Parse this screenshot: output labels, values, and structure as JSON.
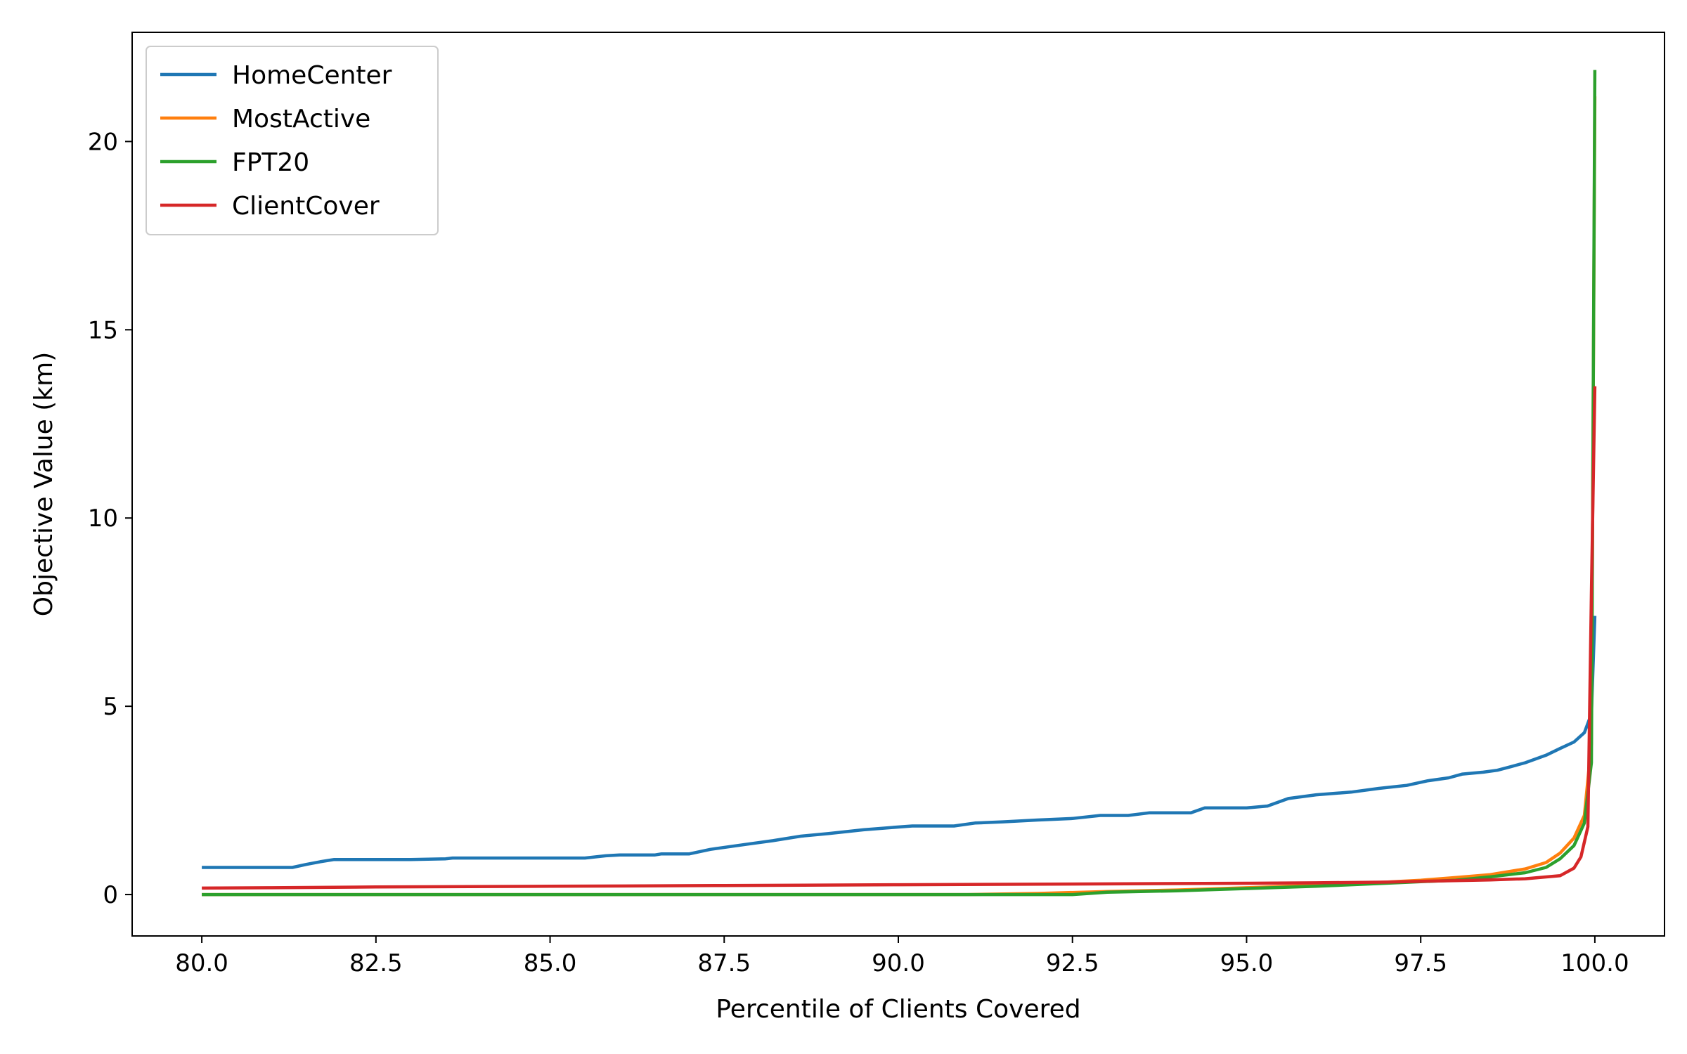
{
  "chart_data": {
    "type": "line",
    "title": "",
    "xlabel": "Percentile of Clients Covered",
    "ylabel": "Objective Value (km)",
    "xlim": [
      79.0,
      101.0
    ],
    "ylim": [
      -1.1,
      22.9
    ],
    "xticks": [
      80.0,
      82.5,
      85.0,
      87.5,
      90.0,
      92.5,
      95.0,
      97.5,
      100.0
    ],
    "xtick_labels": [
      "80.0",
      "82.5",
      "85.0",
      "87.5",
      "90.0",
      "92.5",
      "95.0",
      "97.5",
      "100.0"
    ],
    "yticks": [
      0,
      5,
      10,
      15,
      20
    ],
    "ytick_labels": [
      "0",
      "5",
      "10",
      "15",
      "20"
    ],
    "grid": false,
    "legend_position": "top-left",
    "series": [
      {
        "name": "HomeCenter",
        "color": "#1f77b4",
        "points": [
          [
            80.0,
            0.72
          ],
          [
            81.3,
            0.72
          ],
          [
            81.5,
            0.8
          ],
          [
            81.7,
            0.87
          ],
          [
            81.9,
            0.93
          ],
          [
            82.5,
            0.93
          ],
          [
            83.0,
            0.93
          ],
          [
            83.5,
            0.95
          ],
          [
            83.6,
            0.97
          ],
          [
            84.5,
            0.97
          ],
          [
            85.5,
            0.97
          ],
          [
            85.8,
            1.03
          ],
          [
            86.0,
            1.05
          ],
          [
            86.5,
            1.05
          ],
          [
            86.6,
            1.08
          ],
          [
            87.0,
            1.08
          ],
          [
            87.3,
            1.2
          ],
          [
            87.8,
            1.33
          ],
          [
            88.2,
            1.43
          ],
          [
            88.6,
            1.55
          ],
          [
            89.0,
            1.62
          ],
          [
            89.5,
            1.72
          ],
          [
            89.9,
            1.78
          ],
          [
            90.2,
            1.82
          ],
          [
            90.8,
            1.82
          ],
          [
            91.1,
            1.9
          ],
          [
            91.5,
            1.93
          ],
          [
            92.0,
            1.98
          ],
          [
            92.5,
            2.02
          ],
          [
            92.9,
            2.1
          ],
          [
            93.3,
            2.1
          ],
          [
            93.6,
            2.17
          ],
          [
            94.2,
            2.17
          ],
          [
            94.4,
            2.3
          ],
          [
            95.0,
            2.3
          ],
          [
            95.3,
            2.35
          ],
          [
            95.6,
            2.55
          ],
          [
            96.0,
            2.65
          ],
          [
            96.5,
            2.72
          ],
          [
            96.9,
            2.82
          ],
          [
            97.3,
            2.9
          ],
          [
            97.6,
            3.02
          ],
          [
            97.9,
            3.1
          ],
          [
            98.1,
            3.2
          ],
          [
            98.4,
            3.25
          ],
          [
            98.6,
            3.3
          ],
          [
            98.8,
            3.4
          ],
          [
            99.0,
            3.5
          ],
          [
            99.3,
            3.7
          ],
          [
            99.5,
            3.88
          ],
          [
            99.7,
            4.05
          ],
          [
            99.85,
            4.3
          ],
          [
            99.95,
            4.8
          ],
          [
            100.0,
            7.4
          ]
        ]
      },
      {
        "name": "MostActive",
        "color": "#ff7f0e",
        "points": [
          [
            80.0,
            0.0
          ],
          [
            91.0,
            0.0
          ],
          [
            92.0,
            0.03
          ],
          [
            93.0,
            0.08
          ],
          [
            94.0,
            0.12
          ],
          [
            95.0,
            0.18
          ],
          [
            96.0,
            0.25
          ],
          [
            97.0,
            0.33
          ],
          [
            97.5,
            0.38
          ],
          [
            98.0,
            0.45
          ],
          [
            98.5,
            0.53
          ],
          [
            99.0,
            0.68
          ],
          [
            99.3,
            0.85
          ],
          [
            99.5,
            1.1
          ],
          [
            99.7,
            1.5
          ],
          [
            99.85,
            2.1
          ],
          [
            99.95,
            4.0
          ],
          [
            100.0,
            21.2
          ]
        ]
      },
      {
        "name": "FPT20",
        "color": "#2ca02c",
        "points": [
          [
            80.0,
            0.0
          ],
          [
            92.5,
            0.0
          ],
          [
            93.0,
            0.06
          ],
          [
            94.0,
            0.1
          ],
          [
            95.0,
            0.16
          ],
          [
            96.0,
            0.22
          ],
          [
            97.0,
            0.3
          ],
          [
            97.5,
            0.34
          ],
          [
            98.0,
            0.38
          ],
          [
            98.5,
            0.47
          ],
          [
            99.0,
            0.58
          ],
          [
            99.3,
            0.72
          ],
          [
            99.5,
            0.95
          ],
          [
            99.7,
            1.3
          ],
          [
            99.85,
            1.9
          ],
          [
            99.95,
            3.5
          ],
          [
            100.0,
            21.9
          ]
        ]
      },
      {
        "name": "ClientCover",
        "color": "#d62728",
        "points": [
          [
            80.0,
            0.17
          ],
          [
            81.0,
            0.18
          ],
          [
            82.5,
            0.2
          ],
          [
            85.0,
            0.22
          ],
          [
            87.5,
            0.24
          ],
          [
            90.0,
            0.26
          ],
          [
            92.5,
            0.28
          ],
          [
            95.0,
            0.3
          ],
          [
            96.0,
            0.31
          ],
          [
            97.0,
            0.33
          ],
          [
            97.5,
            0.35
          ],
          [
            98.0,
            0.37
          ],
          [
            98.5,
            0.39
          ],
          [
            99.0,
            0.42
          ],
          [
            99.5,
            0.5
          ],
          [
            99.7,
            0.7
          ],
          [
            99.8,
            1.0
          ],
          [
            99.9,
            1.8
          ],
          [
            99.95,
            8.0
          ],
          [
            100.0,
            13.5
          ]
        ]
      }
    ]
  }
}
